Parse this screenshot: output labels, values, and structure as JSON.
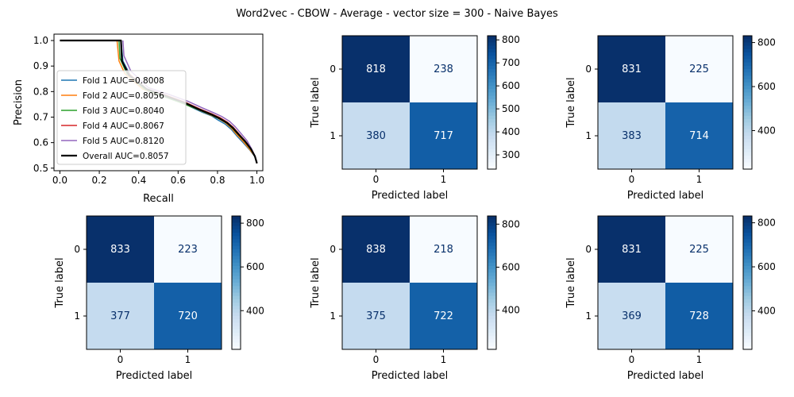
{
  "title": "Word2vec - CBOW - Average - vector size = 300 - Naive Bayes",
  "chart_data": [
    {
      "type": "line",
      "panel": "pr-curve",
      "xlabel": "Recall",
      "ylabel": "Precision",
      "xlim": [
        -0.03,
        1.03
      ],
      "ylim": [
        0.49,
        1.025
      ],
      "xticks": [
        "0.0",
        "0.2",
        "0.4",
        "0.6",
        "0.8",
        "1.0"
      ],
      "yticks": [
        "0.5",
        "0.6",
        "0.7",
        "0.8",
        "0.9",
        "1.0"
      ],
      "legend_position": "lower-left",
      "series": [
        {
          "name": "Fold 1 AUC=0.8008",
          "color": "#1f77b4",
          "width": 1.5,
          "points": [
            [
              0.3,
              1.0
            ],
            [
              0.31,
              1.0
            ],
            [
              0.32,
              0.92
            ],
            [
              0.36,
              0.86
            ],
            [
              0.45,
              0.8
            ],
            [
              0.55,
              0.78
            ],
            [
              0.65,
              0.745
            ],
            [
              0.72,
              0.72
            ],
            [
              0.77,
              0.705
            ],
            [
              0.8,
              0.69
            ],
            [
              0.84,
              0.672
            ],
            [
              0.87,
              0.652
            ],
            [
              0.9,
              0.625
            ],
            [
              0.93,
              0.6
            ],
            [
              0.96,
              0.575
            ],
            [
              0.99,
              0.545
            ],
            [
              1.0,
              0.519
            ]
          ]
        },
        {
          "name": "Fold 2 AUC=0.8056",
          "color": "#ff7f0e",
          "width": 1.5,
          "points": [
            [
              0.29,
              1.0
            ],
            [
              0.3,
              0.92
            ],
            [
              0.33,
              0.87
            ],
            [
              0.42,
              0.81
            ],
            [
              0.52,
              0.783
            ],
            [
              0.62,
              0.755
            ],
            [
              0.7,
              0.73
            ],
            [
              0.76,
              0.71
            ],
            [
              0.8,
              0.697
            ],
            [
              0.84,
              0.678
            ],
            [
              0.87,
              0.657
            ],
            [
              0.9,
              0.63
            ],
            [
              0.93,
              0.605
            ],
            [
              0.96,
              0.577
            ],
            [
              0.99,
              0.546
            ],
            [
              1.0,
              0.519
            ]
          ]
        },
        {
          "name": "Fold 3 AUC=0.8040",
          "color": "#2ca02c",
          "width": 1.5,
          "points": [
            [
              0.3,
              1.0
            ],
            [
              0.305,
              0.93
            ],
            [
              0.34,
              0.87
            ],
            [
              0.43,
              0.81
            ],
            [
              0.53,
              0.78
            ],
            [
              0.63,
              0.752
            ],
            [
              0.71,
              0.727
            ],
            [
              0.77,
              0.708
            ],
            [
              0.81,
              0.693
            ],
            [
              0.85,
              0.675
            ],
            [
              0.88,
              0.653
            ],
            [
              0.91,
              0.628
            ],
            [
              0.94,
              0.603
            ],
            [
              0.97,
              0.572
            ],
            [
              0.99,
              0.545
            ],
            [
              1.0,
              0.519
            ]
          ]
        },
        {
          "name": "Fold 4 AUC=0.8067",
          "color": "#d62728",
          "width": 1.5,
          "points": [
            [
              0.31,
              1.0
            ],
            [
              0.315,
              0.92
            ],
            [
              0.35,
              0.87
            ],
            [
              0.44,
              0.81
            ],
            [
              0.54,
              0.785
            ],
            [
              0.64,
              0.757
            ],
            [
              0.71,
              0.732
            ],
            [
              0.77,
              0.713
            ],
            [
              0.81,
              0.699
            ],
            [
              0.85,
              0.68
            ],
            [
              0.88,
              0.66
            ],
            [
              0.91,
              0.633
            ],
            [
              0.94,
              0.607
            ],
            [
              0.97,
              0.578
            ],
            [
              0.99,
              0.547
            ],
            [
              1.0,
              0.519
            ]
          ]
        },
        {
          "name": "Fold 5 AUC=0.8120",
          "color": "#9467bd",
          "width": 1.5,
          "points": [
            [
              0.32,
              1.0
            ],
            [
              0.325,
              0.94
            ],
            [
              0.36,
              0.88
            ],
            [
              0.45,
              0.815
            ],
            [
              0.55,
              0.79
            ],
            [
              0.65,
              0.762
            ],
            [
              0.72,
              0.737
            ],
            [
              0.78,
              0.717
            ],
            [
              0.82,
              0.703
            ],
            [
              0.86,
              0.684
            ],
            [
              0.89,
              0.662
            ],
            [
              0.92,
              0.635
            ],
            [
              0.95,
              0.607
            ],
            [
              0.97,
              0.58
            ],
            [
              0.99,
              0.548
            ],
            [
              1.0,
              0.519
            ]
          ]
        },
        {
          "name": "Overall AUC=0.8057",
          "color": "#000000",
          "width": 2.2,
          "points": [
            [
              0.0,
              1.0
            ],
            [
              0.31,
              1.0
            ],
            [
              0.315,
              0.92
            ],
            [
              0.35,
              0.865
            ],
            [
              0.44,
              0.81
            ],
            [
              0.54,
              0.782
            ],
            [
              0.64,
              0.754
            ],
            [
              0.71,
              0.729
            ],
            [
              0.77,
              0.71
            ],
            [
              0.81,
              0.695
            ],
            [
              0.85,
              0.677
            ],
            [
              0.88,
              0.656
            ],
            [
              0.91,
              0.63
            ],
            [
              0.94,
              0.605
            ],
            [
              0.97,
              0.575
            ],
            [
              0.99,
              0.546
            ],
            [
              1.0,
              0.519
            ]
          ]
        }
      ]
    },
    {
      "type": "heatmap",
      "panel": "cm-fold-1",
      "xlabel": "Predicted label",
      "ylabel": "True label",
      "labels": [
        "0",
        "1"
      ],
      "matrix": [
        [
          818,
          238
        ],
        [
          380,
          717
        ]
      ],
      "colorbar_ticks": [
        300,
        400,
        500,
        600,
        700,
        800
      ]
    },
    {
      "type": "heatmap",
      "panel": "cm-fold-2",
      "xlabel": "Predicted label",
      "ylabel": "True label",
      "labels": [
        "0",
        "1"
      ],
      "matrix": [
        [
          831,
          225
        ],
        [
          383,
          714
        ]
      ],
      "colorbar_ticks": [
        400,
        600,
        800
      ]
    },
    {
      "type": "heatmap",
      "panel": "cm-fold-3",
      "xlabel": "Predicted label",
      "ylabel": "True label",
      "labels": [
        "0",
        "1"
      ],
      "matrix": [
        [
          833,
          223
        ],
        [
          377,
          720
        ]
      ],
      "colorbar_ticks": [
        400,
        600,
        800
      ]
    },
    {
      "type": "heatmap",
      "panel": "cm-fold-4",
      "xlabel": "Predicted label",
      "ylabel": "True label",
      "labels": [
        "0",
        "1"
      ],
      "matrix": [
        [
          838,
          218
        ],
        [
          375,
          722
        ]
      ],
      "colorbar_ticks": [
        400,
        600,
        800
      ]
    },
    {
      "type": "heatmap",
      "panel": "cm-fold-5",
      "xlabel": "Predicted label",
      "ylabel": "True label",
      "labels": [
        "0",
        "1"
      ],
      "matrix": [
        [
          831,
          225
        ],
        [
          369,
          728
        ]
      ],
      "colorbar_ticks": [
        400,
        600,
        800
      ]
    }
  ]
}
